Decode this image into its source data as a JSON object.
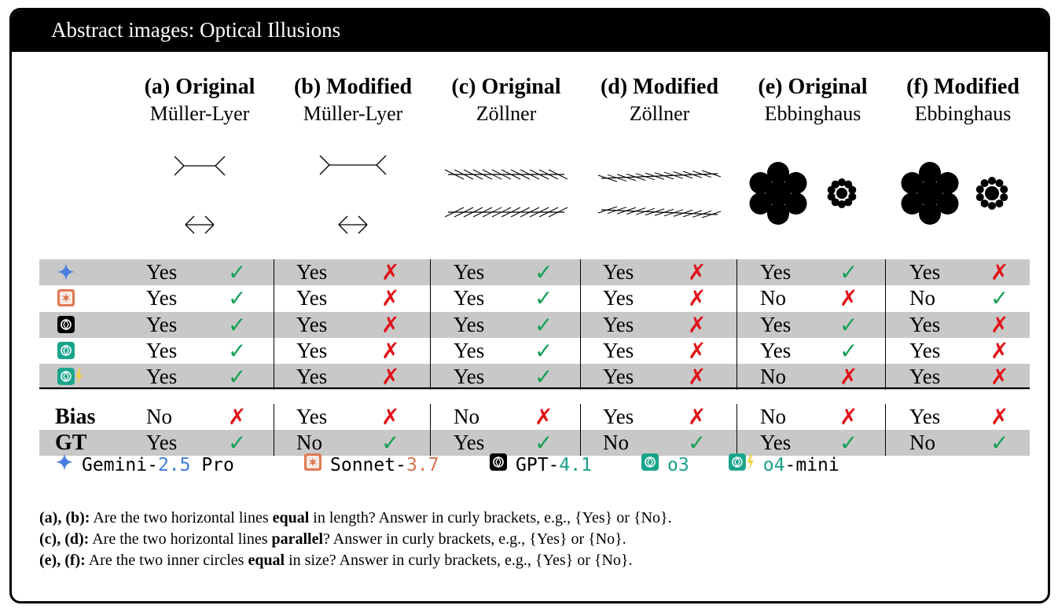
{
  "title": "Abstract images: Optical Illusions",
  "columns": [
    {
      "label": "(a)",
      "kind": "Original",
      "name": "Müller-Lyer"
    },
    {
      "label": "(b)",
      "kind": "Modified",
      "name": "Müller-Lyer"
    },
    {
      "label": "(c)",
      "kind": "Original",
      "name": "Zöllner"
    },
    {
      "label": "(d)",
      "kind": "Modified",
      "name": "Zöllner"
    },
    {
      "label": "(e)",
      "kind": "Original",
      "name": "Ebbinghaus"
    },
    {
      "label": "(f)",
      "kind": "Modified",
      "name": "Ebbinghaus"
    }
  ],
  "model_rows": [
    {
      "model": "Gemini-2.5 Pro",
      "icon": "gemini-icon",
      "answers": [
        "Yes",
        "Yes",
        "Yes",
        "Yes",
        "Yes",
        "Yes"
      ],
      "correct": [
        true,
        false,
        true,
        false,
        true,
        false
      ]
    },
    {
      "model": "Sonnet-3.7",
      "icon": "sonnet-icon",
      "answers": [
        "Yes",
        "Yes",
        "Yes",
        "Yes",
        "No",
        "No"
      ],
      "correct": [
        true,
        false,
        true,
        false,
        false,
        true
      ]
    },
    {
      "model": "GPT-4.1",
      "icon": "gpt-icon",
      "answers": [
        "Yes",
        "Yes",
        "Yes",
        "Yes",
        "Yes",
        "Yes"
      ],
      "correct": [
        true,
        false,
        true,
        false,
        true,
        false
      ]
    },
    {
      "model": "o3",
      "icon": "o3-icon",
      "answers": [
        "Yes",
        "Yes",
        "Yes",
        "Yes",
        "Yes",
        "Yes"
      ],
      "correct": [
        true,
        false,
        true,
        false,
        true,
        false
      ]
    },
    {
      "model": "o4-mini",
      "icon": "o4-mini-icon",
      "answers": [
        "Yes",
        "Yes",
        "Yes",
        "Yes",
        "No",
        "Yes"
      ],
      "correct": [
        true,
        false,
        true,
        false,
        false,
        false
      ]
    }
  ],
  "bias_row": {
    "label": "Bias",
    "answers": [
      "No",
      "Yes",
      "No",
      "Yes",
      "No",
      "Yes"
    ],
    "correct": [
      false,
      false,
      false,
      false,
      false,
      false
    ]
  },
  "gt_row": {
    "label": "GT",
    "answers": [
      "Yes",
      "No",
      "Yes",
      "No",
      "Yes",
      "No"
    ],
    "correct": [
      true,
      true,
      true,
      true,
      true,
      true
    ]
  },
  "marks": {
    "ok": "✓",
    "bad": "✗"
  },
  "legend": [
    {
      "prefix": "Gemini-",
      "version": "2.5",
      "suffix": " Pro",
      "icon": "gemini-icon",
      "color": "#3b7bd8"
    },
    {
      "prefix": "Sonnet-",
      "version": "3.7",
      "suffix": "",
      "icon": "sonnet-icon",
      "color": "#d9734e"
    },
    {
      "prefix": "GPT-",
      "version": "4.1",
      "suffix": "",
      "icon": "gpt-icon",
      "color": "#1aa08a"
    },
    {
      "prefix": "",
      "version": "o3",
      "suffix": "",
      "icon": "o3-icon",
      "color": "#1aa08a"
    },
    {
      "prefix": "",
      "version": "o4",
      "suffix": "-mini",
      "icon": "o4-mini-icon",
      "color": "#1aa08a"
    }
  ],
  "notes": [
    {
      "lead": "(a), (b):",
      "pre": " Are the two horizontal lines ",
      "bold": "equal",
      "post": " in length? Answer in curly brackets, e.g., {Yes} or {No}."
    },
    {
      "lead": "(c), (d):",
      "pre": " Are the two horizontal lines ",
      "bold": "parallel",
      "post": "? Answer in curly brackets, e.g., {Yes} or {No}."
    },
    {
      "lead": "(e), (f):",
      "pre": " Are the two inner circles ",
      "bold": "equal",
      "post": " in size? Answer in curly brackets, e.g., {Yes} or {No}."
    }
  ]
}
